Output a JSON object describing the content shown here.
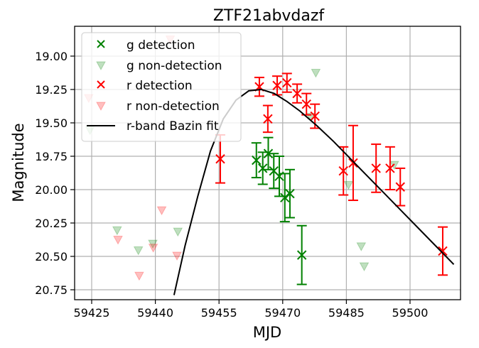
{
  "chart_data": {
    "type": "scatter",
    "title": "ZTF21abvdazf",
    "xlabel": "MJD",
    "ylabel": "Magnitude",
    "xlim": [
      59421,
      59512
    ],
    "ylim": [
      20.79,
      18.77
    ],
    "y_inverted": true,
    "grid": true,
    "xticks": [
      59425,
      59440,
      59455,
      59470,
      59485,
      59500
    ],
    "yticks": [
      19.0,
      19.25,
      19.5,
      19.75,
      20.0,
      20.25,
      20.5,
      20.75
    ],
    "xtick_labels": [
      "59425",
      "59440",
      "59455",
      "59470",
      "59485",
      "59500"
    ],
    "ytick_labels": [
      "19.00",
      "19.25",
      "19.50",
      "19.75",
      "20.00",
      "20.25",
      "20.50",
      "20.75"
    ],
    "legend_position": "upper left",
    "legend": [
      "g detection",
      "g non-detection",
      "r detection",
      "r non-detection",
      "r-band Bazin fit"
    ],
    "colors": {
      "g": "#008000",
      "r": "#ff0000",
      "fit": "#000000",
      "grid": "#b0b0b0"
    },
    "series": [
      {
        "name": "g detection",
        "marker": "x",
        "color": "#008000",
        "points": [
          {
            "x": 59463.8,
            "y": 19.78,
            "err": 0.13
          },
          {
            "x": 59465.3,
            "y": 19.84,
            "err": 0.12
          },
          {
            "x": 59466.6,
            "y": 19.73,
            "err": 0.12
          },
          {
            "x": 59467.9,
            "y": 19.86,
            "err": 0.13
          },
          {
            "x": 59469.2,
            "y": 19.9,
            "err": 0.15
          },
          {
            "x": 59470.5,
            "y": 20.06,
            "err": 0.18
          },
          {
            "x": 59471.7,
            "y": 20.03,
            "err": 0.18
          },
          {
            "x": 59474.5,
            "y": 20.49,
            "err": 0.22
          }
        ]
      },
      {
        "name": "g non-detection",
        "marker": "v",
        "color": "#008000",
        "alpha": 0.25,
        "points": [
          {
            "x": 59424.6,
            "y": 19.56
          },
          {
            "x": 59431.0,
            "y": 20.31
          },
          {
            "x": 59436.0,
            "y": 20.46
          },
          {
            "x": 59439.4,
            "y": 20.41
          },
          {
            "x": 59445.3,
            "y": 20.32
          },
          {
            "x": 59477.8,
            "y": 19.13
          },
          {
            "x": 59476.6,
            "y": 19.46
          },
          {
            "x": 59485.5,
            "y": 19.97
          },
          {
            "x": 59488.5,
            "y": 20.43
          },
          {
            "x": 59489.2,
            "y": 20.58
          },
          {
            "x": 59496.3,
            "y": 19.82
          }
        ]
      },
      {
        "name": "r detection",
        "marker": "x",
        "color": "#ff0000",
        "points": [
          {
            "x": 59455.3,
            "y": 19.77,
            "err": 0.18
          },
          {
            "x": 59464.5,
            "y": 19.23,
            "err": 0.07
          },
          {
            "x": 59466.5,
            "y": 19.47,
            "err": 0.1
          },
          {
            "x": 59468.7,
            "y": 19.22,
            "err": 0.07
          },
          {
            "x": 59471.0,
            "y": 19.2,
            "err": 0.07
          },
          {
            "x": 59473.4,
            "y": 19.28,
            "err": 0.07
          },
          {
            "x": 59475.6,
            "y": 19.36,
            "err": 0.08
          },
          {
            "x": 59477.6,
            "y": 19.45,
            "err": 0.09
          },
          {
            "x": 59484.3,
            "y": 19.86,
            "err": 0.18
          },
          {
            "x": 59486.6,
            "y": 19.8,
            "err": 0.28
          },
          {
            "x": 59492.0,
            "y": 19.84,
            "err": 0.18
          },
          {
            "x": 59495.3,
            "y": 19.84,
            "err": 0.16
          },
          {
            "x": 59497.7,
            "y": 19.98,
            "err": 0.14
          },
          {
            "x": 59507.7,
            "y": 20.46,
            "err": 0.18
          }
        ]
      },
      {
        "name": "r non-detection",
        "marker": "v",
        "color": "#ff0000",
        "alpha": 0.25,
        "points": [
          {
            "x": 59443.5,
            "y": 18.88
          },
          {
            "x": 59424.3,
            "y": 19.32
          },
          {
            "x": 59431.2,
            "y": 20.38
          },
          {
            "x": 59436.2,
            "y": 20.65
          },
          {
            "x": 59439.5,
            "y": 20.44
          },
          {
            "x": 59441.5,
            "y": 20.16
          },
          {
            "x": 59445.1,
            "y": 20.5
          }
        ]
      },
      {
        "name": "r-band Bazin fit",
        "type": "line",
        "color": "#000000",
        "points": [
          {
            "x": 59444.4,
            "y": 20.79
          },
          {
            "x": 59447.0,
            "y": 20.42
          },
          {
            "x": 59450.0,
            "y": 20.05
          },
          {
            "x": 59453.0,
            "y": 19.71
          },
          {
            "x": 59456.0,
            "y": 19.47
          },
          {
            "x": 59459.0,
            "y": 19.33
          },
          {
            "x": 59462.0,
            "y": 19.26
          },
          {
            "x": 59465.0,
            "y": 19.25
          },
          {
            "x": 59468.0,
            "y": 19.28
          },
          {
            "x": 59471.0,
            "y": 19.34
          },
          {
            "x": 59474.0,
            "y": 19.41
          },
          {
            "x": 59478.0,
            "y": 19.52
          },
          {
            "x": 59482.0,
            "y": 19.64
          },
          {
            "x": 59486.0,
            "y": 19.77
          },
          {
            "x": 59490.0,
            "y": 19.9
          },
          {
            "x": 59494.0,
            "y": 20.03
          },
          {
            "x": 59498.0,
            "y": 20.16
          },
          {
            "x": 59502.0,
            "y": 20.29
          },
          {
            "x": 59506.0,
            "y": 20.42
          },
          {
            "x": 59510.3,
            "y": 20.56
          }
        ]
      }
    ]
  }
}
